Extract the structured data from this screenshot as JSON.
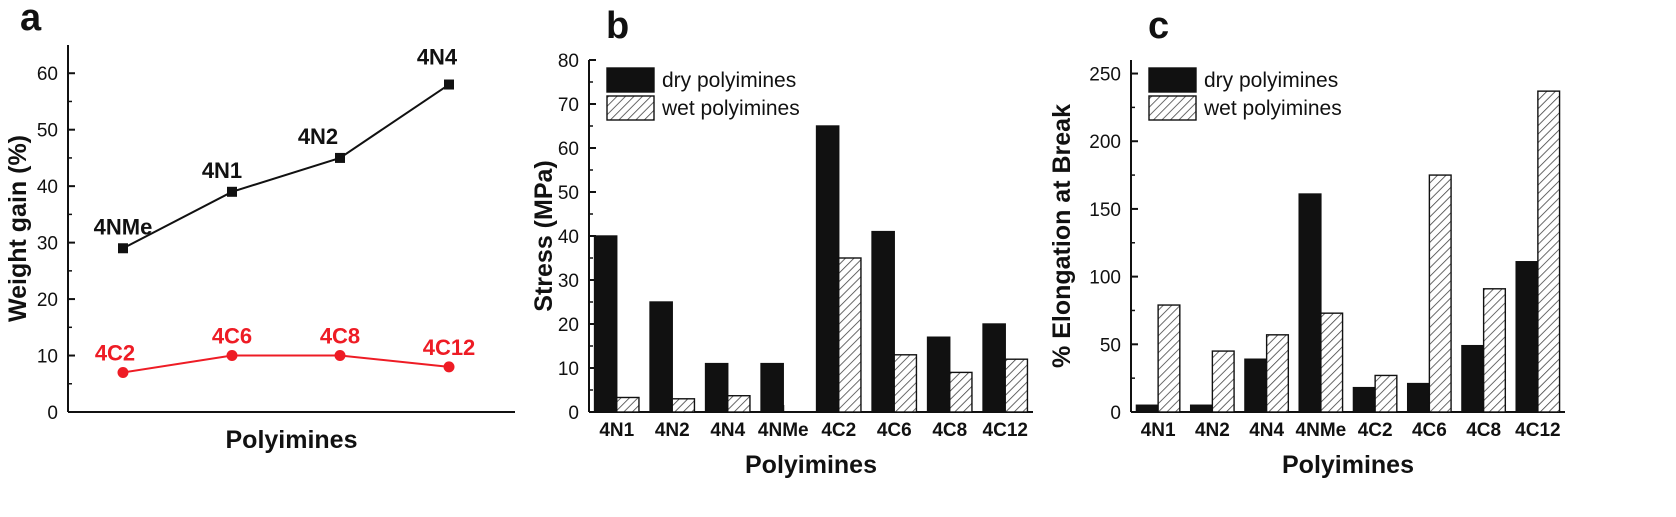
{
  "colors": {
    "black_series": "#111111",
    "red_series": "#ee1c25",
    "wet_hatch": "#444444"
  },
  "chart_data": [
    {
      "panel": "a",
      "type": "line",
      "xlabel": "Polyimines",
      "ylabel": "Weight gain (%)",
      "ylim": [
        0,
        65
      ],
      "yticks": [
        0,
        10,
        20,
        30,
        40,
        50,
        60
      ],
      "series": [
        {
          "color": "#111111",
          "marker": "square",
          "points": [
            {
              "label": "4NMe",
              "y": 29
            },
            {
              "label": "4N1",
              "y": 39
            },
            {
              "label": "4N2",
              "y": 45
            },
            {
              "label": "4N4",
              "y": 58
            }
          ]
        },
        {
          "color": "#ee1c25",
          "marker": "circle",
          "points": [
            {
              "label": "4C2",
              "y": 7
            },
            {
              "label": "4C6",
              "y": 10
            },
            {
              "label": "4C8",
              "y": 10
            },
            {
              "label": "4C12",
              "y": 8
            }
          ]
        }
      ]
    },
    {
      "panel": "b",
      "type": "bar",
      "xlabel": "Polyimines",
      "ylabel": "Stress (MPa)",
      "ylim": [
        0,
        80
      ],
      "yticks": [
        0,
        10,
        20,
        30,
        40,
        50,
        60,
        70,
        80
      ],
      "legend_position": "top-left",
      "categories": [
        "4N1",
        "4N2",
        "4N4",
        "4NMe",
        "4C2",
        "4C6",
        "4C8",
        "4C12"
      ],
      "series": [
        {
          "name": "dry polyimines",
          "style": "solid",
          "values": [
            40,
            25,
            11,
            11,
            65,
            41,
            17,
            20
          ]
        },
        {
          "name": "wet polyimines",
          "style": "hatched",
          "values": [
            3.3,
            3,
            3.7,
            0,
            35,
            13,
            9,
            12
          ]
        }
      ]
    },
    {
      "panel": "c",
      "type": "bar",
      "xlabel": "Polyimines",
      "ylabel": "% Elongation at Break",
      "ylim": [
        0,
        260
      ],
      "yticks": [
        0,
        50,
        100,
        150,
        200,
        250
      ],
      "legend_position": "top-left",
      "categories": [
        "4N1",
        "4N2",
        "4N4",
        "4NMe",
        "4C2",
        "4C6",
        "4C8",
        "4C12"
      ],
      "series": [
        {
          "name": "dry polyimines",
          "style": "solid",
          "values": [
            5,
            5,
            39,
            161,
            18,
            21,
            49,
            111
          ]
        },
        {
          "name": "wet polyimines",
          "style": "hatched",
          "values": [
            79,
            45,
            57,
            73,
            27,
            175,
            91,
            237
          ]
        }
      ]
    }
  ]
}
